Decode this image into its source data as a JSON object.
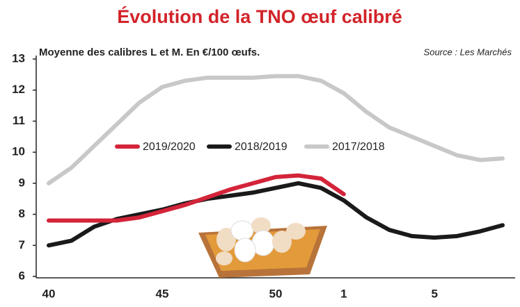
{
  "chart_data": {
    "type": "line",
    "title": "Évolution de la TNO œuf calibré",
    "subtitle": "Moyenne des calibres L et M. En €/100 œufs.",
    "source": "Source : Les Marchés",
    "categories": [
      "40",
      null,
      null,
      null,
      null,
      "45",
      null,
      null,
      null,
      null,
      "50",
      null,
      null,
      "1",
      null,
      null,
      null,
      "5",
      null,
      null,
      null
    ],
    "series": [
      {
        "name": "2019/2020",
        "color": "#d3243a",
        "values": [
          7.8,
          7.8,
          7.8,
          7.8,
          7.9,
          8.1,
          8.3,
          8.55,
          8.8,
          9.0,
          9.2,
          9.25,
          9.15,
          8.65,
          null,
          null,
          null,
          null,
          null,
          null,
          null
        ]
      },
      {
        "name": "2018/2019",
        "color": "#1a1a1a",
        "values": [
          7.0,
          7.15,
          7.6,
          7.85,
          8.0,
          8.15,
          8.35,
          8.5,
          8.6,
          8.7,
          8.85,
          9.0,
          8.85,
          8.45,
          7.9,
          7.5,
          7.3,
          7.25,
          7.3,
          7.45,
          7.65
        ]
      },
      {
        "name": "2017/2018",
        "color": "#c8c8c8",
        "values": [
          9.0,
          9.5,
          10.2,
          10.9,
          11.6,
          12.1,
          12.3,
          12.4,
          12.4,
          12.4,
          12.45,
          12.45,
          12.3,
          11.9,
          11.3,
          10.8,
          10.5,
          10.2,
          9.9,
          9.75,
          9.8
        ]
      }
    ],
    "ylim": [
      6,
      13
    ],
    "yticks": [
      6,
      7,
      8,
      9,
      10,
      11,
      12,
      13
    ]
  }
}
